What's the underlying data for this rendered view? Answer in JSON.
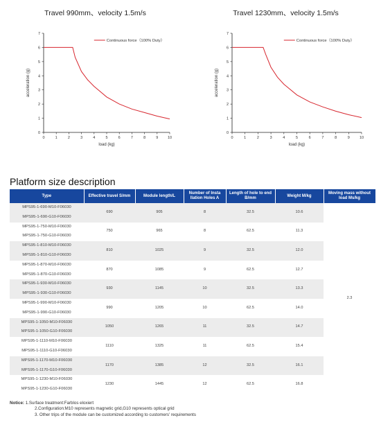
{
  "charts": [
    {
      "title": "Travel 990mm、velocity 1.5m/s",
      "ylabel": "acceleration (g)",
      "xlabel": "load (kg)",
      "legend": "Continuous force（100% Duty）"
    },
    {
      "title": "Travel 1230mm、velocity 1.5m/s",
      "ylabel": "acceleration (g)",
      "xlabel": "load (kg)",
      "legend": "Continuous force（100% Duty）"
    }
  ],
  "chart_data": [
    {
      "type": "line",
      "title": "Travel 990mm、velocity 1.5m/s",
      "xlabel": "load (kg)",
      "ylabel": "acceleration (g)",
      "xlim": [
        0,
        10
      ],
      "ylim": [
        0,
        7
      ],
      "x_ticks": [
        0,
        1,
        2,
        3,
        4,
        5,
        6,
        7,
        8,
        9,
        10
      ],
      "y_ticks": [
        0,
        1,
        2,
        3,
        4,
        5,
        6,
        7
      ],
      "grid": false,
      "legend_position": "top-center",
      "series_color": "#d7262e",
      "series": [
        {
          "name": "Continuous force（100% Duty）",
          "x": [
            0,
            2.3,
            2.5,
            3,
            3.5,
            4,
            5,
            6,
            7,
            8,
            9,
            10
          ],
          "y": [
            6.0,
            6.0,
            5.3,
            4.3,
            3.7,
            3.25,
            2.5,
            2.0,
            1.65,
            1.4,
            1.15,
            0.95
          ]
        }
      ]
    },
    {
      "type": "line",
      "title": "Travel 1230mm、velocity 1.5m/s",
      "xlabel": "load (kg)",
      "ylabel": "acceleration (g)",
      "xlim": [
        0,
        10
      ],
      "ylim": [
        0,
        7
      ],
      "x_ticks": [
        0,
        1,
        2,
        3,
        4,
        5,
        6,
        7,
        8,
        9,
        10
      ],
      "y_ticks": [
        0,
        1,
        2,
        3,
        4,
        5,
        6,
        7
      ],
      "grid": false,
      "legend_position": "top-center",
      "series_color": "#d7262e",
      "series": [
        {
          "name": "Continuous force（100% Duty）",
          "x": [
            0,
            2.4,
            2.6,
            3,
            3.5,
            4,
            5,
            6,
            7,
            8,
            9,
            10
          ],
          "y": [
            6.0,
            6.0,
            5.5,
            4.6,
            3.9,
            3.4,
            2.65,
            2.15,
            1.8,
            1.5,
            1.25,
            1.05
          ]
        }
      ]
    }
  ],
  "section_title": "Platform size description",
  "table": {
    "header_color": "#17479e",
    "headers": [
      "Type",
      "Effective travel S/mm",
      "Module length/L",
      "Number of Insta llation Holes A",
      "Length of hole to end B/mm",
      "Weight M/kg",
      "Moving mass without load Ms/kg"
    ],
    "moving_mass": "2.3",
    "groups": [
      {
        "types": [
          "MPS95-1-690-M10-F06030",
          "MPS95-1-690-G10-F06030"
        ],
        "travel": "690",
        "length": "905",
        "holes": "8",
        "b": "32.5",
        "weight": "10.6"
      },
      {
        "types": [
          "MPS95-1-750-M10-F06030",
          "MPS95-1-750-G10-F06030"
        ],
        "travel": "750",
        "length": "965",
        "holes": "8",
        "b": "62.5",
        "weight": "11.3"
      },
      {
        "types": [
          "MPS95-1-810-M10-F06030",
          "MPS95-1-810-G10-F06030"
        ],
        "travel": "810",
        "length": "1025",
        "holes": "9",
        "b": "32.5",
        "weight": "12.0"
      },
      {
        "types": [
          "MPS95-1-870-M10-F06030",
          "MPS95-1-870-G10-F06030"
        ],
        "travel": "870",
        "length": "1085",
        "holes": "9",
        "b": "62.5",
        "weight": "12.7"
      },
      {
        "types": [
          "MPS95-1-930-M10-F06030",
          "MPS95-1-930-G10-F06030"
        ],
        "travel": "930",
        "length": "1145",
        "holes": "10",
        "b": "32.5",
        "weight": "13.3"
      },
      {
        "types": [
          "MPS95-1-990-M10-F06030",
          "MPS95-1-990-G10-F06030"
        ],
        "travel": "990",
        "length": "1205",
        "holes": "10",
        "b": "62.5",
        "weight": "14.0"
      },
      {
        "types": [
          "MPS95-1-1050-M10-F06030",
          "MPS95-1-1050-G10-F06030"
        ],
        "travel": "1050",
        "length": "1265",
        "holes": "11",
        "b": "32.5",
        "weight": "14.7"
      },
      {
        "types": [
          "MPS95-1-1110-M10-F06030",
          "MPS95-1-1110-G10-F06030"
        ],
        "travel": "1110",
        "length": "1325",
        "holes": "11",
        "b": "62.5",
        "weight": "15.4"
      },
      {
        "types": [
          "MPS95-1-1170-M10-F06030",
          "MPS95-1-1170-G10-F06030"
        ],
        "travel": "1170",
        "length": "1385",
        "holes": "12",
        "b": "32.5",
        "weight": "16.1"
      },
      {
        "types": [
          "MPS95-1-1230-M10-F06030",
          "MPS95-1-1230-G10-F06030"
        ],
        "travel": "1230",
        "length": "1445",
        "holes": "12",
        "b": "62.5",
        "weight": "16.8"
      }
    ]
  },
  "notice": {
    "label": "Notice:",
    "lines": [
      "1.Surface treatment:Farblos eloxiert",
      "2.Configuration:M10 represents magnetic grid,G10 represents optical grid",
      "3. Other trips of the module can be customized according to customers' requirements"
    ]
  }
}
